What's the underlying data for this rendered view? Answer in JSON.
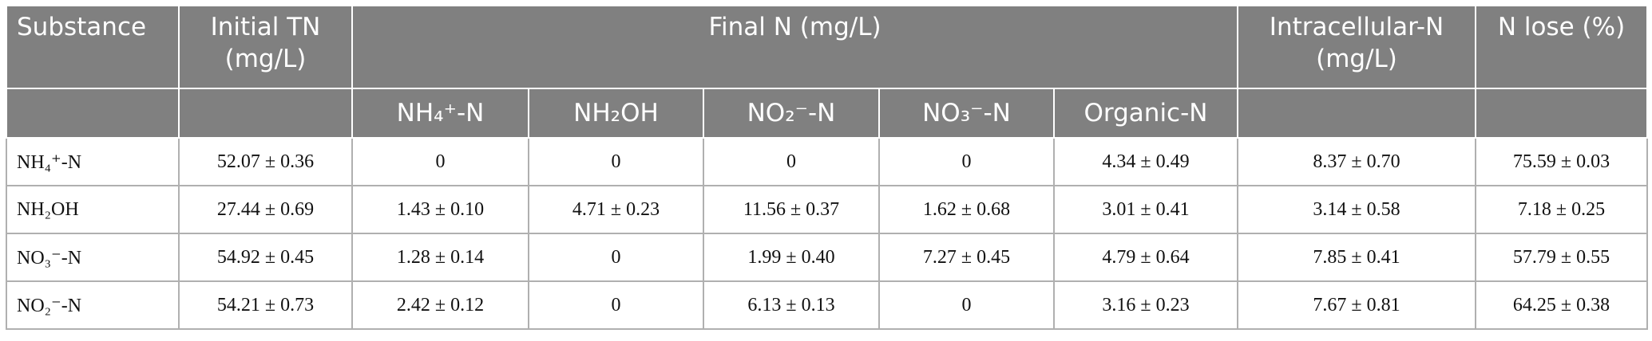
{
  "table": {
    "header": [
      "Substance",
      "Initial TN (mg/L)",
      "Final N (mg/L)",
      "Intracellular-N (mg/L)",
      "N lose (%)"
    ],
    "subheader": [
      "NH₄⁺-N",
      "NH₂OH",
      "NO₂⁻-N",
      "NO₃⁻-N",
      "Organic-N"
    ],
    "rows": [
      [
        "NH₄⁺-N",
        "52.07 ± 0.36",
        "0",
        "0",
        "0",
        "0",
        "4.34 ± 0.49",
        "8.37 ± 0.70",
        "75.59 ± 0.03"
      ],
      [
        "NH₂OH",
        "27.44 ± 0.69",
        "1.43 ± 0.10",
        "4.71 ± 0.23",
        "11.56 ± 0.37",
        "1.62 ± 0.68",
        "3.01 ± 0.41",
        "3.14 ± 0.58",
        "7.18 ± 0.25"
      ],
      [
        "NO₃⁻-N",
        "54.92 ± 0.45",
        "1.28 ± 0.14",
        "0",
        "1.99 ± 0.40",
        "7.27 ± 0.45",
        "4.79 ± 0.64",
        "7.85 ± 0.41",
        "57.79 ± 0.55"
      ],
      [
        "NO₂⁻-N",
        "54.21 ± 0.73",
        "2.42 ± 0.12",
        "0",
        "6.13 ± 0.13",
        "0",
        "3.16 ± 0.23",
        "7.67 ± 0.81",
        "64.25 ± 0.38"
      ]
    ]
  }
}
